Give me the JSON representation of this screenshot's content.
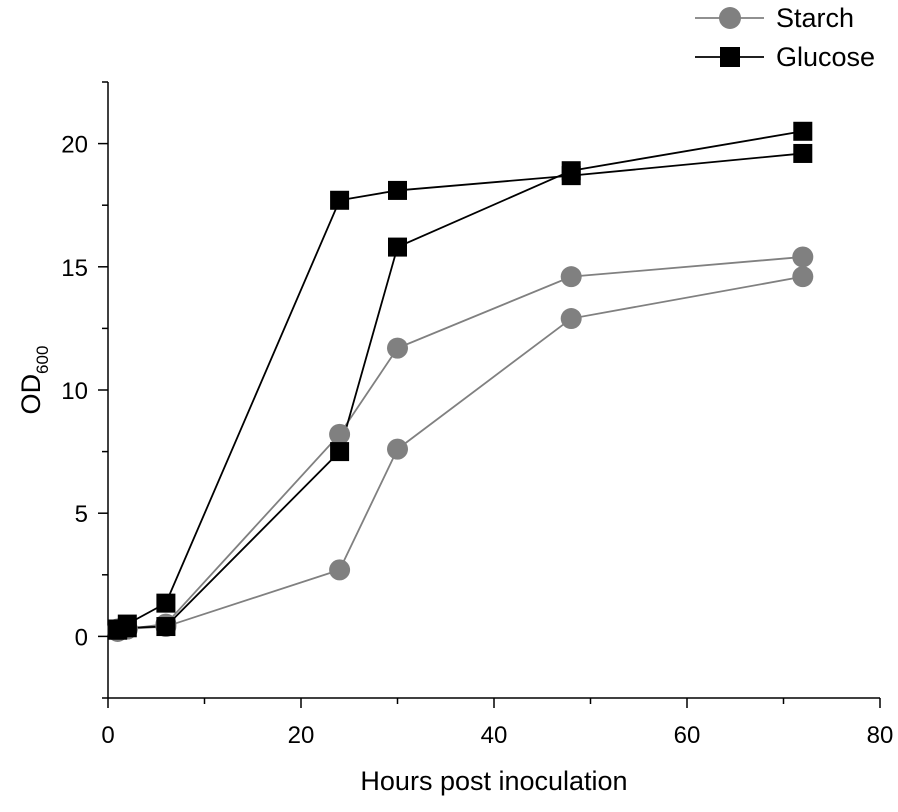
{
  "chart_data": {
    "type": "line",
    "title": "",
    "xlabel": "Hours post inoculation",
    "ylabel": "OD",
    "ylabel_subscript": "600",
    "xlim": [
      0,
      80
    ],
    "ylim": [
      -2.5,
      22.5
    ],
    "x_major_ticks": [
      0,
      20,
      40,
      60,
      80
    ],
    "x_minor_ticks": [
      10,
      30,
      50,
      70
    ],
    "x_tick_labels": [
      "0",
      "20",
      "40",
      "60",
      "80"
    ],
    "y_major_ticks": [
      0,
      5,
      10,
      15,
      20
    ],
    "y_minor_ticks": [
      -2.5,
      2.5,
      7.5,
      12.5,
      17.5,
      22.5
    ],
    "y_tick_labels": [
      "0",
      "5",
      "10",
      "15",
      "20"
    ],
    "grid": false,
    "legend_position": "top-right",
    "series": [
      {
        "name": "Starch",
        "replicate": 1,
        "marker": "circle",
        "color": "#808080",
        "line_color": "#808080",
        "x": [
          1,
          2,
          6,
          24,
          30,
          48,
          72
        ],
        "y": [
          0.3,
          0.3,
          0.5,
          8.2,
          11.7,
          14.6,
          15.4
        ]
      },
      {
        "name": "Starch",
        "replicate": 2,
        "marker": "circle",
        "color": "#808080",
        "line_color": "#808080",
        "x": [
          1,
          2,
          6,
          24,
          30,
          48,
          72
        ],
        "y": [
          0.2,
          0.3,
          0.4,
          2.7,
          7.6,
          12.9,
          14.6
        ]
      },
      {
        "name": "Glucose",
        "replicate": 1,
        "marker": "square",
        "color": "#000000",
        "line_color": "#000000",
        "x": [
          1,
          2,
          6,
          24,
          30,
          48,
          72
        ],
        "y": [
          0.3,
          0.5,
          1.35,
          17.7,
          18.1,
          18.7,
          19.6
        ]
      },
      {
        "name": "Glucose",
        "replicate": 2,
        "marker": "square",
        "color": "#000000",
        "line_color": "#000000",
        "x": [
          1,
          2,
          6,
          24,
          30,
          48,
          72
        ],
        "y": [
          0.25,
          0.35,
          0.4,
          7.5,
          15.8,
          18.9,
          20.5
        ]
      }
    ],
    "legend": [
      {
        "label": "Starch",
        "marker": "circle",
        "color": "#808080"
      },
      {
        "label": "Glucose",
        "marker": "square",
        "color": "#000000"
      }
    ]
  }
}
